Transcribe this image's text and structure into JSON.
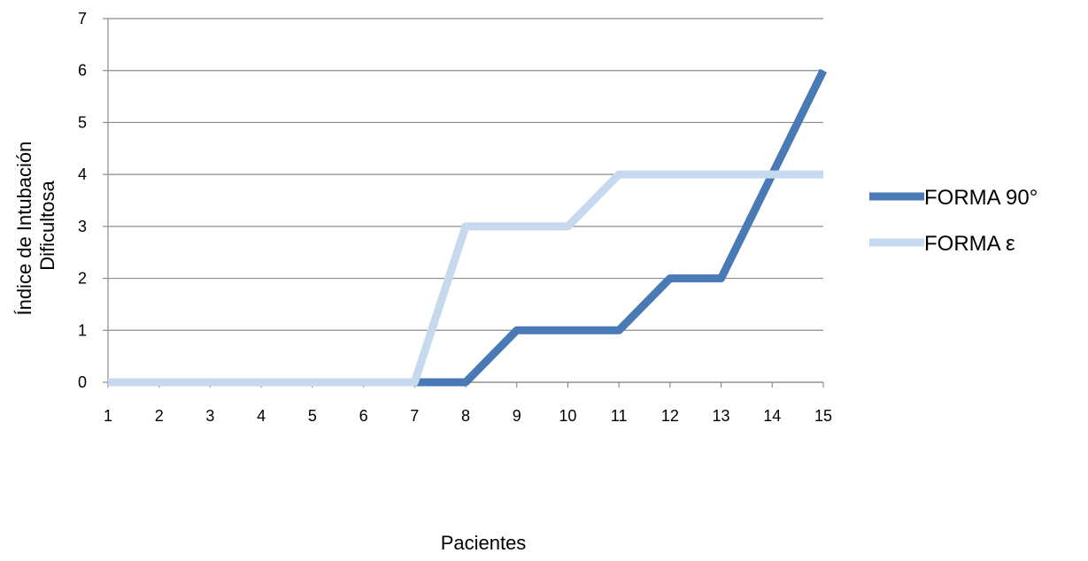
{
  "chart_data": {
    "type": "line",
    "title": "",
    "xlabel": "Pacientes",
    "ylabel": "Índice de Intubación Dificultosa",
    "ylabel_lines": [
      "Índice de Intubación",
      "Dificultosa"
    ],
    "categories": [
      "1",
      "2",
      "3",
      "4",
      "5",
      "6",
      "7",
      "8",
      "9",
      "10",
      "11",
      "12",
      "13",
      "14",
      "15"
    ],
    "ylim": [
      0,
      7
    ],
    "yticks": [
      "0",
      "1",
      "2",
      "3",
      "4",
      "5",
      "6",
      "7"
    ],
    "grid": "horizontal",
    "legend_position": "right",
    "series": [
      {
        "name": "FORMA 90°",
        "color": "#4a7ab5",
        "values": [
          0,
          0,
          0,
          0,
          0,
          0,
          0,
          0,
          1,
          1,
          1,
          2,
          2,
          4,
          6
        ]
      },
      {
        "name": "FORMA ε",
        "color": "#c6d9ef",
        "values": [
          0,
          0,
          0,
          0,
          0,
          0,
          0,
          3,
          3,
          3,
          4,
          4,
          4,
          4,
          4
        ]
      }
    ]
  }
}
